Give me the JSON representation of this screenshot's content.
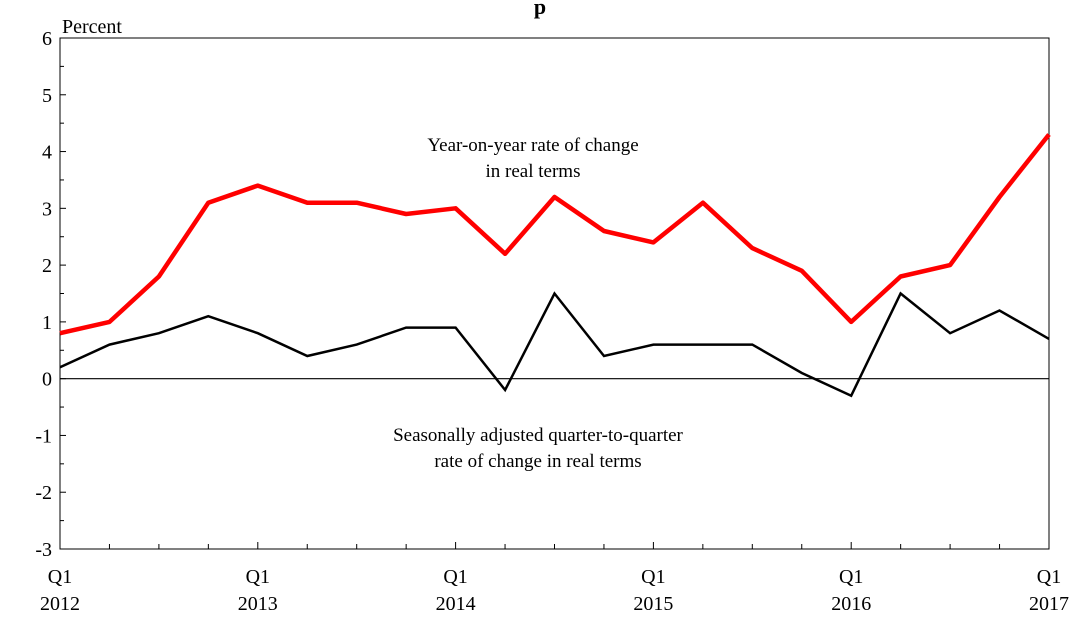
{
  "chart_data": {
    "type": "line",
    "title_fragment": "p",
    "ylabel": "Percent",
    "ylim": [
      -3,
      6
    ],
    "yticks": [
      "-3",
      "-2",
      "-1",
      "0",
      "1",
      "2",
      "3",
      "4",
      "5",
      "6"
    ],
    "x": [
      "Q1 2012",
      "Q2 2012",
      "Q3 2012",
      "Q4 2012",
      "Q1 2013",
      "Q2 2013",
      "Q3 2013",
      "Q4 2013",
      "Q1 2014",
      "Q2 2014",
      "Q3 2014",
      "Q4 2014",
      "Q1 2015",
      "Q2 2015",
      "Q3 2015",
      "Q4 2015",
      "Q1 2016",
      "Q2 2016",
      "Q3 2016",
      "Q4 2016",
      "Q1 2017"
    ],
    "xtick_labels": [
      {
        "quarter": "Q1",
        "year": "2012",
        "index": 0
      },
      {
        "quarter": "Q1",
        "year": "2013",
        "index": 4
      },
      {
        "quarter": "Q1",
        "year": "2014",
        "index": 8
      },
      {
        "quarter": "Q1",
        "year": "2015",
        "index": 12
      },
      {
        "quarter": "Q1",
        "year": "2016",
        "index": 16
      },
      {
        "quarter": "Q1",
        "year": "2017",
        "index": 20
      }
    ],
    "series": [
      {
        "name": "Year-on-year rate of change in real terms",
        "label_lines": [
          "Year-on-year rate of change",
          "in real terms"
        ],
        "color": "#ff0000",
        "values": [
          0.8,
          1.0,
          1.8,
          3.1,
          3.4,
          3.1,
          3.1,
          2.9,
          3.0,
          2.2,
          3.2,
          2.6,
          2.4,
          3.1,
          2.3,
          1.9,
          1.0,
          1.8,
          2.0,
          3.2,
          4.3
        ]
      },
      {
        "name": "Seasonally adjusted quarter-to-quarter rate of change in real terms",
        "label_lines": [
          "Seasonally adjusted quarter-to-quarter",
          "rate of change in real terms"
        ],
        "color": "#000000",
        "values": [
          0.2,
          0.6,
          0.8,
          1.1,
          0.8,
          0.4,
          0.6,
          0.9,
          0.9,
          -0.2,
          1.5,
          0.4,
          0.6,
          0.6,
          0.6,
          0.1,
          -0.3,
          1.5,
          0.8,
          1.2,
          0.7
        ]
      }
    ],
    "zero_line": true,
    "grid": false
  }
}
